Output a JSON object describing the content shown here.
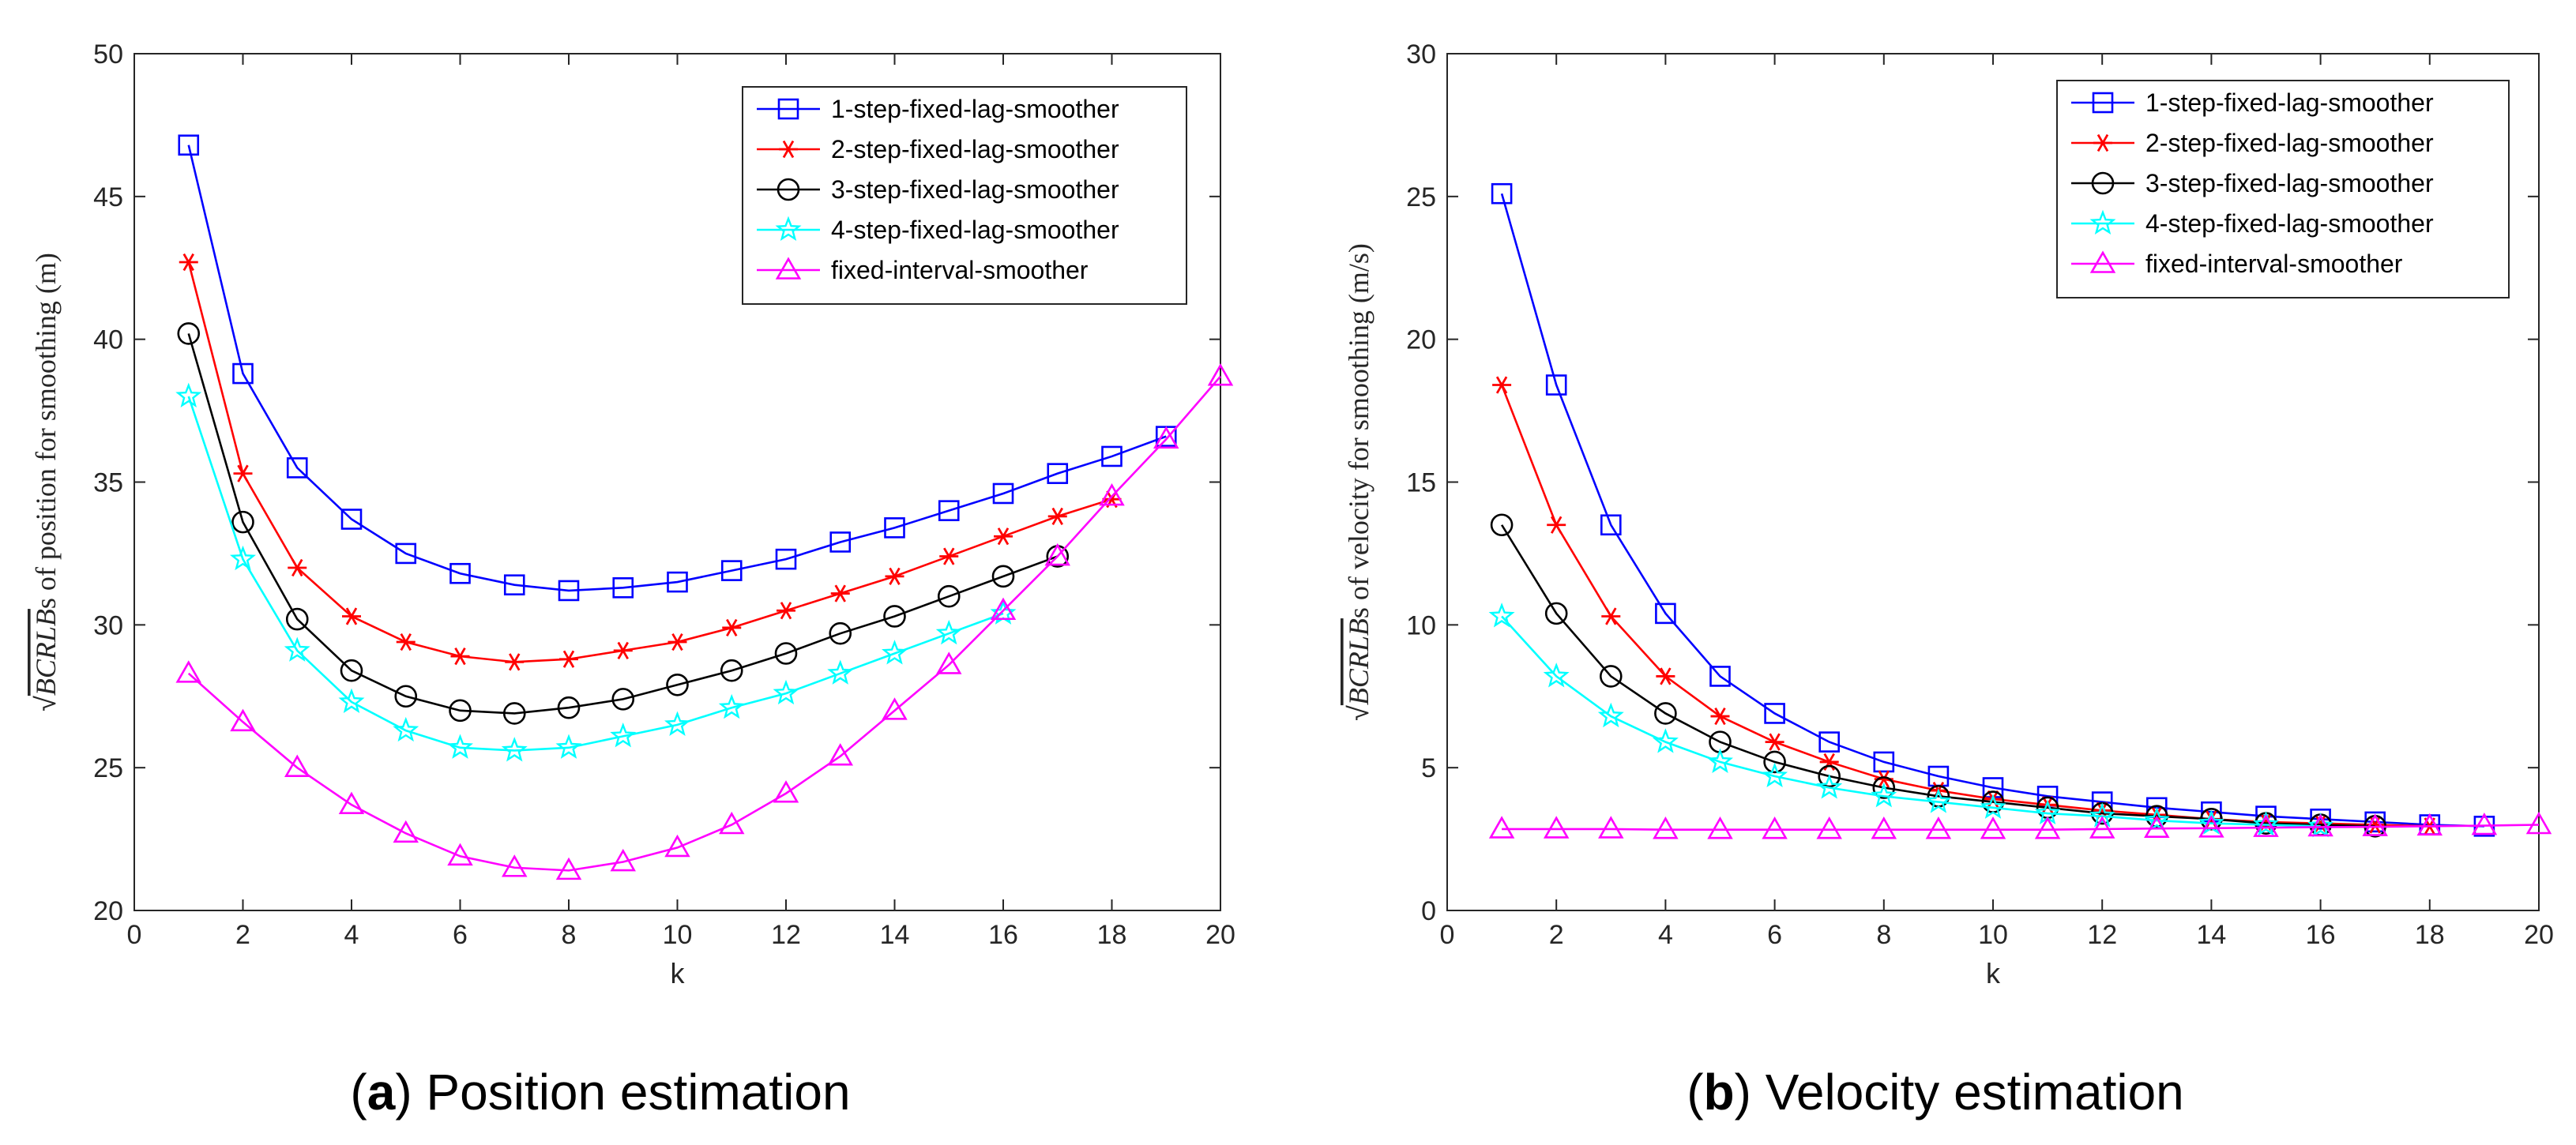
{
  "chart_data": [
    {
      "type": "line",
      "panel": "a",
      "caption": "Position estimation",
      "xlabel": "k",
      "ylabel_math": "BCRLB",
      "ylabel_rest": "s of position for smoothing (m)",
      "xlim": [
        0,
        20
      ],
      "ylim": [
        20,
        50
      ],
      "xticks": [
        0,
        2,
        4,
        6,
        8,
        10,
        12,
        14,
        16,
        18,
        20
      ],
      "yticks": [
        20,
        25,
        30,
        35,
        40,
        45,
        50
      ],
      "grid": false,
      "legend_position": "top-right",
      "series": [
        {
          "name": "1-step-fixed-lag-smoother",
          "color": "#0000ff",
          "marker": "square",
          "x": [
            1,
            2,
            3,
            4,
            5,
            6,
            7,
            8,
            9,
            10,
            11,
            12,
            13,
            14,
            15,
            16,
            17,
            18,
            19
          ],
          "y": [
            46.8,
            38.8,
            35.5,
            33.7,
            32.5,
            31.8,
            31.4,
            31.2,
            31.3,
            31.5,
            31.9,
            32.3,
            32.9,
            33.4,
            34.0,
            34.6,
            35.3,
            35.9,
            36.6
          ]
        },
        {
          "name": "2-step-fixed-lag-smoother",
          "color": "#ff0000",
          "marker": "asterisk",
          "x": [
            1,
            2,
            3,
            4,
            5,
            6,
            7,
            8,
            9,
            10,
            11,
            12,
            13,
            14,
            15,
            16,
            17,
            18
          ],
          "y": [
            42.7,
            35.3,
            32.0,
            30.3,
            29.4,
            28.9,
            28.7,
            28.8,
            29.1,
            29.4,
            29.9,
            30.5,
            31.1,
            31.7,
            32.4,
            33.1,
            33.8,
            34.4
          ]
        },
        {
          "name": "3-step-fixed-lag-smoother",
          "color": "#000000",
          "marker": "circle",
          "x": [
            1,
            2,
            3,
            4,
            5,
            6,
            7,
            8,
            9,
            10,
            11,
            12,
            13,
            14,
            15,
            16,
            17
          ],
          "y": [
            40.2,
            33.6,
            30.2,
            28.4,
            27.5,
            27.0,
            26.9,
            27.1,
            27.4,
            27.9,
            28.4,
            29.0,
            29.7,
            30.3,
            31.0,
            31.7,
            32.4
          ]
        },
        {
          "name": "4-step-fixed-lag-smoother",
          "color": "#00ffff",
          "marker": "pentagram",
          "x": [
            1,
            2,
            3,
            4,
            5,
            6,
            7,
            8,
            9,
            10,
            11,
            12,
            13,
            14,
            15,
            16
          ],
          "y": [
            38.0,
            32.3,
            29.1,
            27.3,
            26.3,
            25.7,
            25.6,
            25.7,
            26.1,
            26.5,
            27.1,
            27.6,
            28.3,
            29.0,
            29.7,
            30.4
          ]
        },
        {
          "name": "fixed-interval-smoother",
          "color": "#ff00ff",
          "marker": "triangle",
          "x": [
            1,
            2,
            3,
            4,
            5,
            6,
            7,
            8,
            9,
            10,
            11,
            12,
            13,
            14,
            15,
            16,
            17,
            18,
            19,
            20
          ],
          "y": [
            28.3,
            26.6,
            25.0,
            23.7,
            22.7,
            21.9,
            21.5,
            21.4,
            21.7,
            22.2,
            23.0,
            24.1,
            25.4,
            27.0,
            28.6,
            30.5,
            32.4,
            34.5,
            36.5,
            38.7
          ]
        }
      ]
    },
    {
      "type": "line",
      "panel": "b",
      "caption": "Velocity estimation",
      "xlabel": "k",
      "ylabel_math": "BCRLB",
      "ylabel_rest": "s of velocity for smoothing (m/s)",
      "xlim": [
        0,
        20
      ],
      "ylim": [
        0,
        30
      ],
      "xticks": [
        0,
        2,
        4,
        6,
        8,
        10,
        12,
        14,
        16,
        18,
        20
      ],
      "yticks": [
        0,
        5,
        10,
        15,
        20,
        25,
        30
      ],
      "grid": false,
      "legend_position": "top-right",
      "series": [
        {
          "name": "1-step-fixed-lag-smoother",
          "color": "#0000ff",
          "marker": "square",
          "x": [
            1,
            2,
            3,
            4,
            5,
            6,
            7,
            8,
            9,
            10,
            11,
            12,
            13,
            14,
            15,
            16,
            17,
            18,
            19
          ],
          "y": [
            25.1,
            18.4,
            13.5,
            10.4,
            8.2,
            6.9,
            5.9,
            5.2,
            4.7,
            4.3,
            4.0,
            3.8,
            3.6,
            3.45,
            3.3,
            3.2,
            3.1,
            3.0,
            2.95
          ]
        },
        {
          "name": "2-step-fixed-lag-smoother",
          "color": "#ff0000",
          "marker": "asterisk",
          "x": [
            1,
            2,
            3,
            4,
            5,
            6,
            7,
            8,
            9,
            10,
            11,
            12,
            13,
            14,
            15,
            16,
            17,
            18
          ],
          "y": [
            18.4,
            13.5,
            10.3,
            8.2,
            6.8,
            5.9,
            5.2,
            4.6,
            4.2,
            3.9,
            3.7,
            3.5,
            3.35,
            3.2,
            3.1,
            3.05,
            3.0,
            2.95
          ]
        },
        {
          "name": "3-step-fixed-lag-smoother",
          "color": "#000000",
          "marker": "circle",
          "x": [
            1,
            2,
            3,
            4,
            5,
            6,
            7,
            8,
            9,
            10,
            11,
            12,
            13,
            14,
            15,
            16,
            17
          ],
          "y": [
            13.5,
            10.4,
            8.2,
            6.9,
            5.9,
            5.2,
            4.7,
            4.3,
            4.0,
            3.8,
            3.6,
            3.4,
            3.3,
            3.2,
            3.05,
            3.0,
            2.95
          ]
        },
        {
          "name": "4-step-fixed-lag-smoother",
          "color": "#00ffff",
          "marker": "pentagram",
          "x": [
            1,
            2,
            3,
            4,
            5,
            6,
            7,
            8,
            9,
            10,
            11,
            12,
            13,
            14,
            15,
            16
          ],
          "y": [
            10.3,
            8.2,
            6.8,
            5.9,
            5.2,
            4.7,
            4.3,
            4.0,
            3.8,
            3.6,
            3.4,
            3.3,
            3.15,
            3.05,
            3.0,
            2.95
          ]
        },
        {
          "name": "fixed-interval-smoother",
          "color": "#ff00ff",
          "marker": "triangle",
          "x": [
            1,
            2,
            3,
            4,
            5,
            6,
            7,
            8,
            9,
            10,
            11,
            12,
            13,
            14,
            15,
            16,
            17,
            18,
            19,
            20
          ],
          "y": [
            2.85,
            2.85,
            2.85,
            2.83,
            2.83,
            2.83,
            2.83,
            2.83,
            2.83,
            2.83,
            2.83,
            2.85,
            2.87,
            2.88,
            2.9,
            2.92,
            2.93,
            2.95,
            2.97,
            3.0
          ]
        }
      ]
    }
  ]
}
